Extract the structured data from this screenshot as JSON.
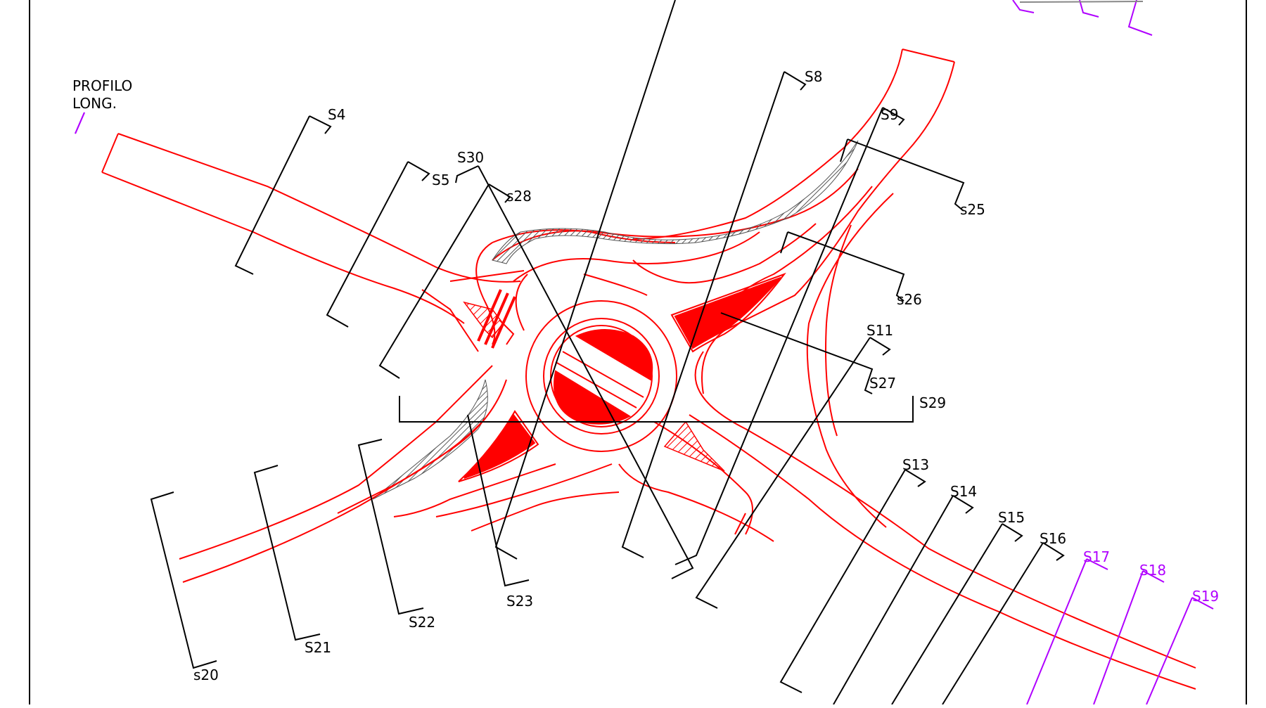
{
  "drawing": {
    "profile_label_line1": "PROFILO",
    "profile_label_line2": "LONG.",
    "sections": {
      "s4": "S4",
      "s5": "S5",
      "s30": "S30",
      "s28": "s28",
      "s8": "S8",
      "s9": "S9",
      "s25": "s25",
      "s26": "s26",
      "s11": "S11",
      "s27": "S27",
      "s29": "S29",
      "s13": "S13",
      "s14": "S14",
      "s15": "S15",
      "s16": "S16",
      "s17": "S17",
      "s18": "S18",
      "s19": "S19",
      "s20": "s20",
      "s21": "S21",
      "s22": "S22",
      "s23": "S23"
    },
    "colors": {
      "road": "#ff0000",
      "section_line": "#000000",
      "profile_line": "#b000ff",
      "hatch": "#555555"
    }
  }
}
